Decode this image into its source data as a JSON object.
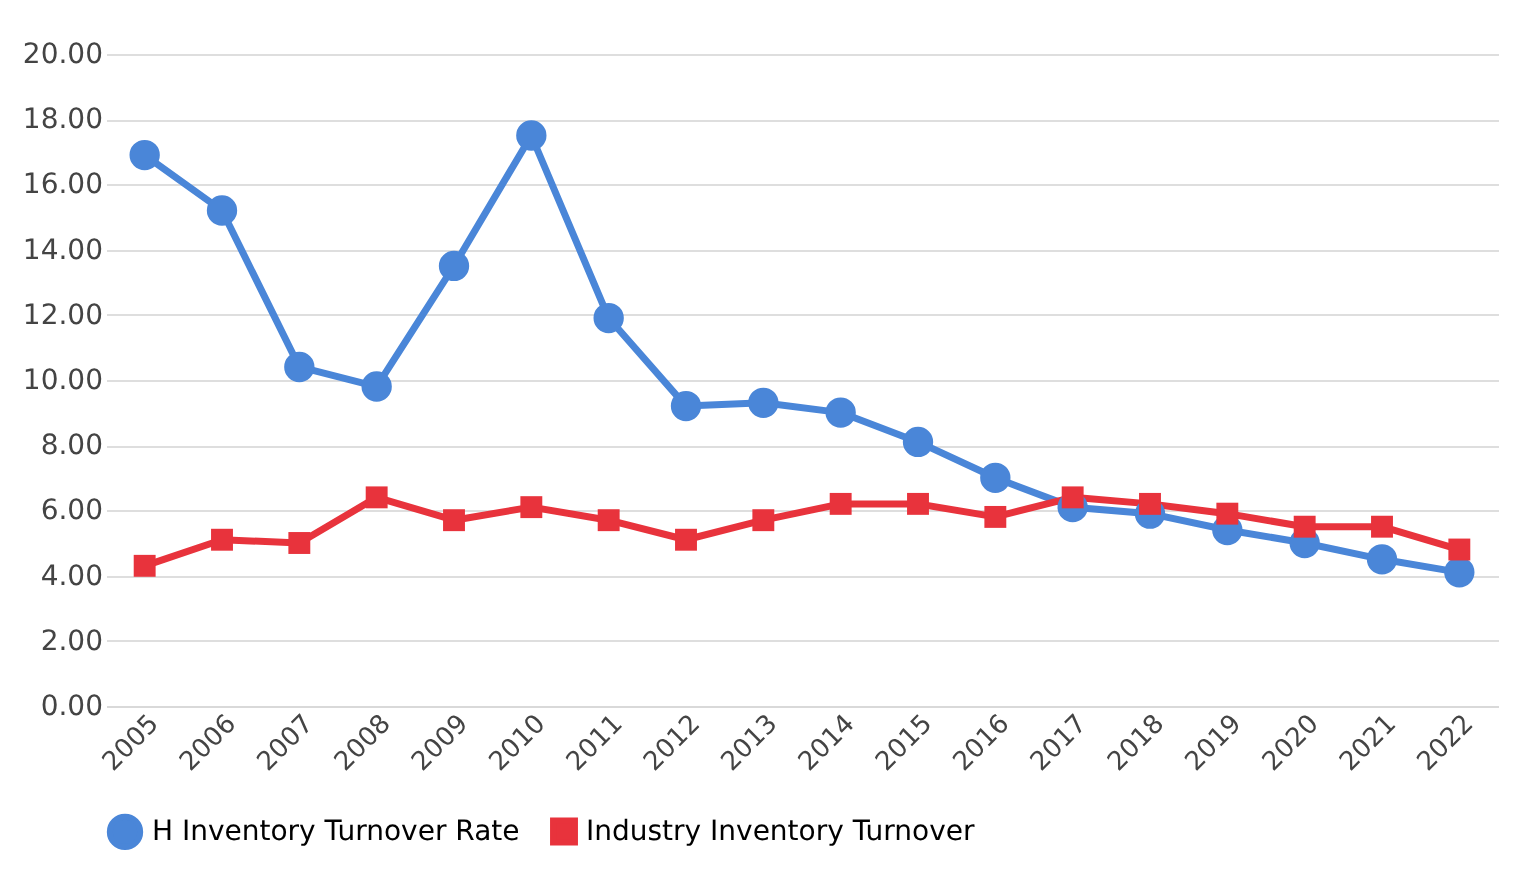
{
  "chart_data": {
    "type": "line",
    "categories": [
      "2005",
      "2006",
      "2007",
      "2008",
      "2009",
      "2010",
      "2011",
      "2012",
      "2013",
      "2014",
      "2015",
      "2016",
      "2017",
      "2018",
      "2019",
      "2020",
      "2021",
      "2022"
    ],
    "series": [
      {
        "name": "H Inventory Turnover Rate",
        "color": "#4a86d8",
        "marker": "circle",
        "values": [
          16.9,
          15.2,
          10.4,
          9.8,
          13.5,
          17.5,
          11.9,
          9.2,
          9.3,
          9.0,
          8.1,
          7.0,
          6.1,
          5.9,
          5.4,
          5.0,
          4.5,
          4.1
        ]
      },
      {
        "name": "Industry Inventory Turnover",
        "color": "#e8333c",
        "marker": "square",
        "values": [
          4.3,
          5.1,
          5.0,
          6.4,
          5.7,
          6.1,
          5.7,
          5.1,
          5.7,
          6.2,
          6.2,
          5.8,
          6.4,
          6.2,
          5.9,
          5.5,
          5.5,
          4.8
        ]
      }
    ],
    "ylim": [
      0,
      20
    ],
    "yticks": [
      {
        "value": 0,
        "label": "0.00"
      },
      {
        "value": 2,
        "label": "2.00"
      },
      {
        "value": 4,
        "label": "4.00"
      },
      {
        "value": 6,
        "label": "6.00"
      },
      {
        "value": 8,
        "label": "8.00"
      },
      {
        "value": 10,
        "label": "10.00"
      },
      {
        "value": 12,
        "label": "12.00"
      },
      {
        "value": 14,
        "label": "14.00"
      },
      {
        "value": 16,
        "label": "16.00"
      },
      {
        "value": 18,
        "label": "18.00"
      },
      {
        "value": 20,
        "label": "20.00"
      }
    ],
    "grid": "y",
    "legend": "bottom",
    "line_style": "solid"
  }
}
